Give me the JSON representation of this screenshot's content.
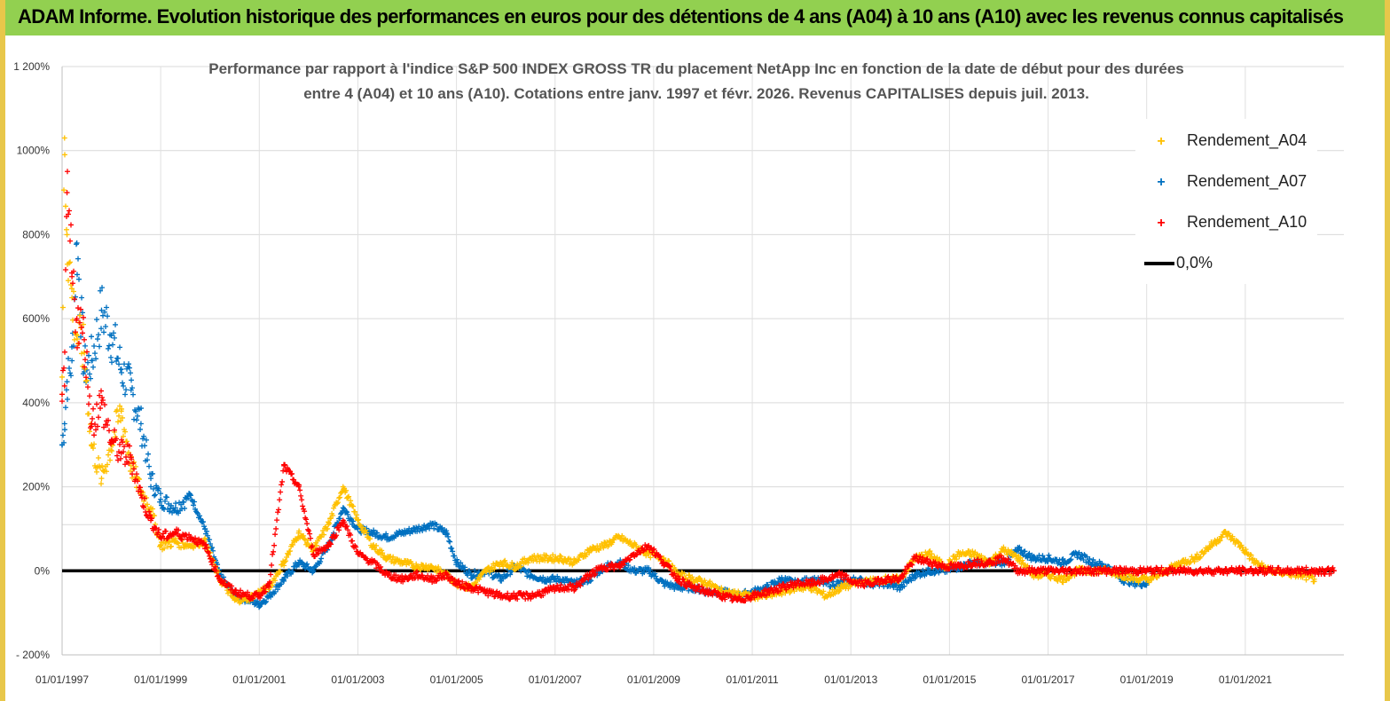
{
  "banner": {
    "text": "ADAM Informe. Evolution historique des performances en euros pour des détentions de 4 ans (A04) à 10 ans (A10) avec les revenus connus capitalisés"
  },
  "colors": {
    "banner_bg": "#92d050",
    "frame": "#e8c74a",
    "A04": "#ffc000",
    "A07": "#0070c0",
    "A10": "#ff0000",
    "zero": "#000000"
  },
  "chart_data": {
    "type": "scatter",
    "title_line1": "Performance par rapport à l'indice S&P 500 INDEX GROSS TR  du placement NetApp Inc en fonction de la date de début pour des durées",
    "title_line2": "entre 4 (A04) et 10 ans (A10).  Cotations entre janv. 1997 et févr. 2026. Revenus CAPITALISES depuis juil. 2013.",
    "xlabel": "",
    "ylabel": "",
    "ylim": [
      -200,
      1200
    ],
    "xlim": [
      1997.0,
      2023.0
    ],
    "y_ticks": [
      {
        "value": 1200,
        "label": "1 200%"
      },
      {
        "value": 1000,
        "label": "1000%"
      },
      {
        "value": 800,
        "label": "800%"
      },
      {
        "value": 600,
        "label": "600%"
      },
      {
        "value": 400,
        "label": "400%"
      },
      {
        "value": 200,
        "label": "200%"
      },
      {
        "value": 0,
        "label": "0%"
      },
      {
        "value": -200,
        "label": "- 200%"
      }
    ],
    "x_ticks": [
      {
        "value": 1997,
        "label": "01/01/1997"
      },
      {
        "value": 1999,
        "label": "01/01/1999"
      },
      {
        "value": 2001,
        "label": "01/01/2001"
      },
      {
        "value": 2003,
        "label": "01/01/2003"
      },
      {
        "value": 2005,
        "label": "01/01/2005"
      },
      {
        "value": 2007,
        "label": "01/01/2007"
      },
      {
        "value": 2009,
        "label": "01/01/2009"
      },
      {
        "value": 2011,
        "label": "01/01/2011"
      },
      {
        "value": 2013,
        "label": "01/01/2013"
      },
      {
        "value": 2015,
        "label": "01/01/2015"
      },
      {
        "value": 2017,
        "label": "01/01/2017"
      },
      {
        "value": 2019,
        "label": "01/01/2019"
      },
      {
        "value": 2021,
        "label": "01/01/2021"
      }
    ],
    "extra_gridlines": [
      110
    ],
    "legend_position": "top-right",
    "series": [
      {
        "name": "Rendement_A04",
        "color": "#ffc000",
        "marker": "+",
        "x": [
          1997.0,
          1997.05,
          1997.1,
          1997.2,
          1997.3,
          1997.45,
          1997.6,
          1997.8,
          1998.0,
          1998.2,
          1998.4,
          1998.6,
          1998.8,
          1999.0,
          1999.3,
          1999.6,
          1999.9,
          2000.2,
          2000.5,
          2000.8,
          2001.0,
          2001.2,
          2001.5,
          2001.8,
          2002.1,
          2002.4,
          2002.7,
          2003.0,
          2003.3,
          2003.6,
          2003.9,
          2004.2,
          2004.5,
          2004.8,
          2005.0,
          2005.3,
          2005.6,
          2005.9,
          2006.2,
          2006.5,
          2006.8,
          2007.1,
          2007.4,
          2007.7,
          2008.0,
          2008.3,
          2008.6,
          2008.9,
          2009.2,
          2009.5,
          2009.8,
          2010.1,
          2010.4,
          2010.7,
          2011.0,
          2011.3,
          2011.6,
          2011.9,
          2012.2,
          2012.5,
          2012.8,
          2013.1,
          2013.4,
          2013.7,
          2014.0,
          2014.3,
          2014.6,
          2014.9,
          2015.2,
          2015.5,
          2015.8,
          2016.1,
          2016.4,
          2016.7,
          2017.0,
          2017.3,
          2017.6,
          2017.9,
          2018.2,
          2018.5,
          2018.8,
          2019.1,
          2019.4,
          2019.7,
          2020.0,
          2020.3,
          2020.6,
          2020.9,
          2021.2,
          2021.5,
          2021.8,
          2022.1,
          2022.4
        ],
        "values": [
          420,
          1030,
          800,
          650,
          560,
          520,
          300,
          220,
          300,
          380,
          250,
          190,
          150,
          60,
          70,
          60,
          70,
          -20,
          -70,
          -65,
          -50,
          -40,
          20,
          90,
          50,
          110,
          200,
          120,
          60,
          30,
          20,
          10,
          10,
          -10,
          -30,
          -40,
          0,
          20,
          10,
          30,
          30,
          30,
          20,
          50,
          60,
          80,
          60,
          40,
          30,
          -10,
          -20,
          -30,
          -50,
          -55,
          -60,
          -60,
          -50,
          -40,
          -40,
          -60,
          -40,
          -30,
          -25,
          -20,
          -20,
          30,
          40,
          10,
          40,
          40,
          20,
          50,
          30,
          -10,
          -10,
          -20,
          0,
          0,
          0,
          -10,
          -20,
          -20,
          0,
          20,
          30,
          60,
          90,
          60,
          20,
          0,
          -5,
          -10,
          -20
        ]
      },
      {
        "name": "Rendement_A07",
        "color": "#0070c0",
        "marker": "+",
        "x": [
          1997.0,
          1997.05,
          1997.1,
          1997.2,
          1997.3,
          1997.45,
          1997.6,
          1997.8,
          1998.0,
          1998.2,
          1998.4,
          1998.6,
          1998.8,
          1999.0,
          1999.3,
          1999.6,
          1999.9,
          2000.2,
          2000.5,
          2000.8,
          2001.0,
          2001.2,
          2001.5,
          2001.8,
          2002.1,
          2002.4,
          2002.7,
          2003.0,
          2003.3,
          2003.6,
          2003.9,
          2004.2,
          2004.5,
          2004.8,
          2005.0,
          2005.3,
          2005.6,
          2005.9,
          2006.2,
          2006.5,
          2006.8,
          2007.1,
          2007.4,
          2007.7,
          2008.0,
          2008.3,
          2008.6,
          2008.9,
          2009.2,
          2009.5,
          2009.8,
          2010.1,
          2010.4,
          2010.7,
          2011.0,
          2011.3,
          2011.6,
          2011.9,
          2012.2,
          2012.5,
          2012.8,
          2013.1,
          2013.4,
          2013.7,
          2014.0,
          2014.3,
          2014.6,
          2014.9,
          2015.2,
          2015.5,
          2015.8,
          2016.1,
          2016.4,
          2016.7,
          2017.0,
          2017.3,
          2017.6,
          2017.9,
          2018.2,
          2018.5,
          2018.8,
          2019.0
        ],
        "values": [
          300,
          350,
          450,
          500,
          780,
          480,
          500,
          620,
          560,
          480,
          430,
          350,
          220,
          170,
          150,
          180,
          100,
          -10,
          -60,
          -70,
          -80,
          -60,
          -20,
          20,
          0,
          60,
          150,
          100,
          90,
          80,
          90,
          100,
          110,
          90,
          20,
          -10,
          0,
          -20,
          10,
          -10,
          -20,
          -20,
          -30,
          -20,
          10,
          20,
          0,
          0,
          -30,
          -40,
          -40,
          -50,
          -50,
          -60,
          -50,
          -40,
          -20,
          -30,
          -20,
          -30,
          -30,
          -20,
          -30,
          -30,
          -40,
          -10,
          0,
          0,
          10,
          20,
          20,
          20,
          50,
          30,
          30,
          20,
          40,
          20,
          10,
          -20,
          -30,
          -30
        ]
      },
      {
        "name": "Rendement_A10",
        "color": "#ff0000",
        "marker": "+",
        "x": [
          1997.0,
          1997.05,
          1997.1,
          1997.2,
          1997.3,
          1997.45,
          1997.6,
          1997.8,
          1998.0,
          1998.2,
          1998.4,
          1998.6,
          1998.8,
          1999.0,
          1999.3,
          1999.6,
          1999.9,
          2000.2,
          2000.5,
          2000.8,
          2001.0,
          2001.2,
          2001.5,
          2001.8,
          2002.1,
          2002.4,
          2002.7,
          2003.0,
          2003.3,
          2003.6,
          2003.9,
          2004.2,
          2004.5,
          2004.8,
          2005.0,
          2005.3,
          2005.6,
          2005.9,
          2006.2,
          2006.5,
          2006.8,
          2007.1,
          2007.4,
          2007.7,
          2008.0,
          2008.3,
          2008.6,
          2008.9,
          2009.2,
          2009.5,
          2009.8,
          2010.1,
          2010.4,
          2010.7,
          2011.0,
          2011.3,
          2011.6,
          2011.9,
          2012.2,
          2012.5,
          2012.8,
          2013.1,
          2013.4,
          2013.7,
          2014.0,
          2014.3,
          2014.6,
          2014.9,
          2015.2,
          2015.5,
          2015.8,
          2016.1,
          2016.4,
          2016.7,
          2017.0,
          2017.3,
          2017.6,
          2017.9,
          2018.2,
          2018.5,
          2018.8,
          2019.1,
          2019.4,
          2019.7,
          2020.0,
          2020.3,
          2020.6,
          2020.9,
          2021.2,
          2021.5,
          2021.8,
          2022.1,
          2022.4,
          2022.8
        ],
        "values": [
          420,
          440,
          900,
          700,
          600,
          550,
          350,
          400,
          310,
          280,
          270,
          180,
          120,
          80,
          90,
          80,
          60,
          -20,
          -50,
          -60,
          -60,
          -30,
          250,
          200,
          40,
          60,
          120,
          40,
          20,
          -10,
          -20,
          -10,
          -20,
          -10,
          -30,
          -40,
          -50,
          -60,
          -60,
          -60,
          -50,
          -40,
          -40,
          -10,
          10,
          10,
          40,
          60,
          20,
          -20,
          -40,
          -50,
          -60,
          -70,
          -60,
          -50,
          -40,
          -30,
          -30,
          -20,
          -10,
          -30,
          -30,
          -20,
          -20,
          30,
          20,
          10,
          10,
          20,
          20,
          30,
          0,
          0,
          0,
          0,
          0,
          0,
          0,
          0,
          0,
          0,
          0,
          0,
          0,
          0,
          0,
          0,
          0,
          0,
          0,
          0,
          0,
          0
        ]
      },
      {
        "name": "0,0%",
        "color": "#000000",
        "marker": "line",
        "x": [
          1997.0,
          2022.8
        ],
        "values": [
          0,
          0
        ]
      }
    ]
  }
}
